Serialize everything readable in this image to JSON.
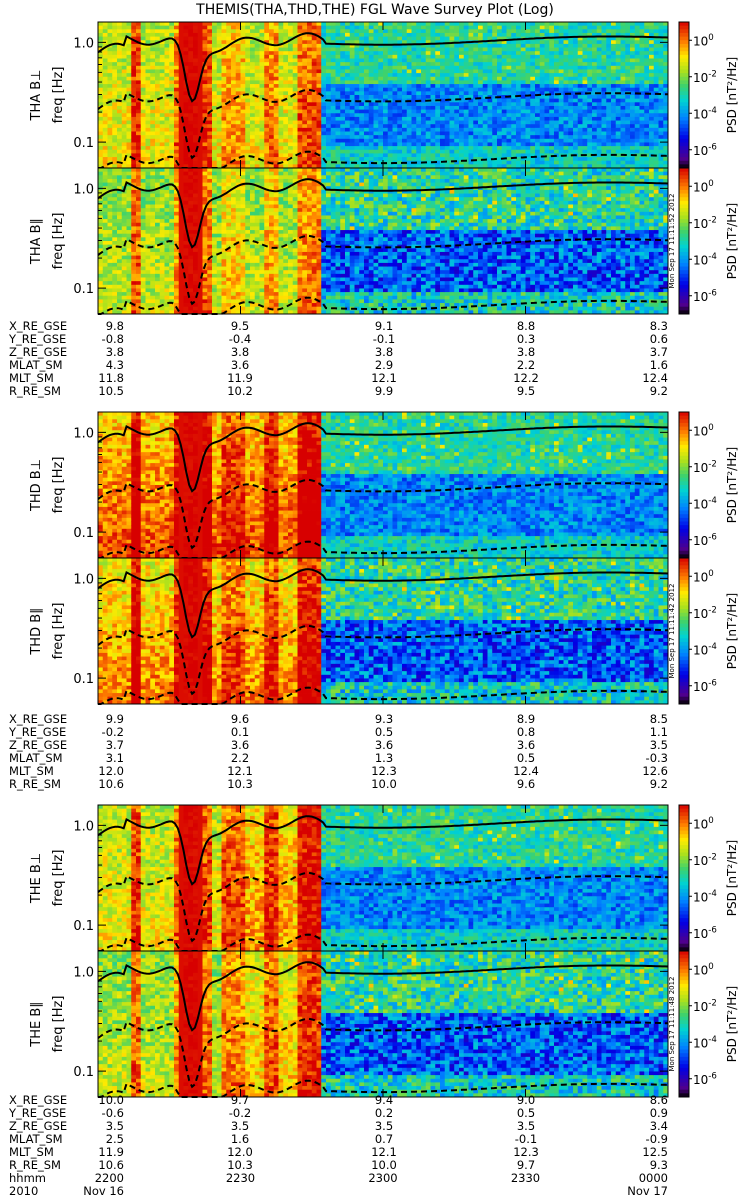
{
  "title": "THEMIS(THA,THD,THE) FGL Wave Survey Plot (Log)",
  "chart_data": {
    "type": "heatmap",
    "x_ticks": [
      "2200",
      "2230",
      "2300",
      "2330",
      "0000"
    ],
    "x_label_rows": [
      {
        "label": "hhmm",
        "values": [
          "2200",
          "2230",
          "2300",
          "2330",
          "0000"
        ]
      },
      {
        "label": "2010",
        "values": [
          "Nov 16",
          "",
          "",
          "",
          "Nov 17"
        ]
      }
    ],
    "y_ticks": [
      "1.0",
      "0.1"
    ],
    "y_unit_label": "freq [Hz]",
    "colorbar": {
      "label": "PSD [nT²/Hz]",
      "ticks": [
        "10^0",
        "10^-2",
        "10^-4",
        "10^-6"
      ],
      "range_exponent": [
        -7,
        1
      ]
    },
    "panels": [
      {
        "name": "THA B⊥",
        "probe": "THA",
        "component": "perp"
      },
      {
        "name": "THA B∥",
        "probe": "THA",
        "component": "par"
      },
      {
        "name": "THD B⊥",
        "probe": "THD",
        "component": "perp"
      },
      {
        "name": "THD B∥",
        "probe": "THD",
        "component": "par"
      },
      {
        "name": "THE B⊥",
        "probe": "THE",
        "component": "perp"
      },
      {
        "name": "THE B∥",
        "probe": "THE",
        "component": "par"
      }
    ],
    "stamps": [
      "Mon Sep 17 11:11:52 2012",
      "Mon Sep 17 11:11:42 2012",
      "Mon Sep 17 11:11:48 2012"
    ],
    "ephemeris": [
      {
        "probe": "THA",
        "rows": [
          {
            "label": "X_RE_GSE",
            "values": [
              "9.8",
              "9.5",
              "9.1",
              "8.8",
              "8.3"
            ]
          },
          {
            "label": "Y_RE_GSE",
            "values": [
              "-0.8",
              "-0.4",
              "-0.1",
              "0.3",
              "0.6"
            ]
          },
          {
            "label": "Z_RE_GSE",
            "values": [
              "3.8",
              "3.8",
              "3.8",
              "3.8",
              "3.7"
            ]
          },
          {
            "label": "MLAT_SM",
            "values": [
              "4.3",
              "3.6",
              "2.9",
              "2.2",
              "1.6"
            ]
          },
          {
            "label": "MLT_SM",
            "values": [
              "11.8",
              "11.9",
              "12.1",
              "12.2",
              "12.4"
            ]
          },
          {
            "label": "R_RE_SM",
            "values": [
              "10.5",
              "10.2",
              "9.9",
              "9.5",
              "9.2"
            ]
          }
        ]
      },
      {
        "probe": "THD",
        "rows": [
          {
            "label": "X_RE_GSE",
            "values": [
              "9.9",
              "9.6",
              "9.3",
              "8.9",
              "8.5"
            ]
          },
          {
            "label": "Y_RE_GSE",
            "values": [
              "-0.2",
              "0.1",
              "0.5",
              "0.8",
              "1.1"
            ]
          },
          {
            "label": "Z_RE_GSE",
            "values": [
              "3.7",
              "3.6",
              "3.6",
              "3.6",
              "3.5"
            ]
          },
          {
            "label": "MLAT_SM",
            "values": [
              "3.1",
              "2.2",
              "1.3",
              "0.5",
              "-0.3"
            ]
          },
          {
            "label": "MLT_SM",
            "values": [
              "12.0",
              "12.1",
              "12.3",
              "12.4",
              "12.6"
            ]
          },
          {
            "label": "R_RE_SM",
            "values": [
              "10.6",
              "10.3",
              "10.0",
              "9.6",
              "9.2"
            ]
          }
        ]
      },
      {
        "probe": "THE",
        "rows": [
          {
            "label": "X_RE_GSE",
            "values": [
              "10.0",
              "9.7",
              "9.4",
              "9.0",
              "8.6"
            ]
          },
          {
            "label": "Y_RE_GSE",
            "values": [
              "-0.6",
              "-0.2",
              "0.2",
              "0.5",
              "0.9"
            ]
          },
          {
            "label": "Z_RE_GSE",
            "values": [
              "3.5",
              "3.5",
              "3.5",
              "3.5",
              "3.4"
            ]
          },
          {
            "label": "MLAT_SM",
            "values": [
              "2.5",
              "1.6",
              "0.7",
              "-0.1",
              "-0.9"
            ]
          },
          {
            "label": "MLT_SM",
            "values": [
              "11.9",
              "12.0",
              "12.1",
              "12.3",
              "12.5"
            ]
          },
          {
            "label": "R_RE_SM",
            "values": [
              "10.6",
              "10.3",
              "10.0",
              "9.7",
              "9.3"
            ]
          }
        ]
      }
    ]
  }
}
